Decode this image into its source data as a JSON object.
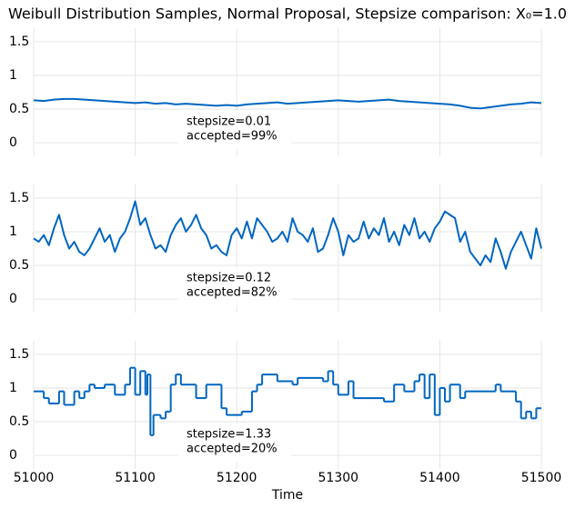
{
  "chart_data": [
    {
      "type": "line",
      "title": "Weibull Distribution Samples, Normal Proposal, Stepsize comparison: X₀=1.0",
      "color": "#0066c0",
      "xlim": [
        51000,
        51500
      ],
      "ylim": [
        -0.2,
        1.7
      ],
      "yticks": [
        0.0,
        0.5,
        1.0,
        1.5
      ],
      "xticks": [
        51000,
        51100,
        51200,
        51300,
        51400,
        51500
      ],
      "show_xticklabels": false,
      "grid": true,
      "annotation": [
        "stepsize=0.01",
        "accepted=99%"
      ],
      "x": [
        51000,
        51010,
        51020,
        51030,
        51040,
        51050,
        51060,
        51070,
        51080,
        51090,
        51100,
        51110,
        51120,
        51130,
        51140,
        51150,
        51160,
        51170,
        51180,
        51190,
        51200,
        51210,
        51220,
        51230,
        51240,
        51250,
        51260,
        51270,
        51280,
        51290,
        51300,
        51310,
        51320,
        51330,
        51340,
        51350,
        51360,
        51370,
        51380,
        51390,
        51400,
        51410,
        51420,
        51430,
        51440,
        51450,
        51460,
        51470,
        51480,
        51490,
        51500
      ],
      "values": [
        0.63,
        0.62,
        0.64,
        0.65,
        0.65,
        0.64,
        0.63,
        0.62,
        0.61,
        0.6,
        0.59,
        0.6,
        0.58,
        0.59,
        0.57,
        0.58,
        0.57,
        0.56,
        0.55,
        0.56,
        0.55,
        0.57,
        0.58,
        0.59,
        0.6,
        0.58,
        0.59,
        0.6,
        0.61,
        0.62,
        0.63,
        0.62,
        0.61,
        0.62,
        0.63,
        0.64,
        0.62,
        0.61,
        0.6,
        0.59,
        0.58,
        0.57,
        0.55,
        0.52,
        0.51,
        0.53,
        0.55,
        0.57,
        0.58,
        0.6,
        0.59
      ]
    },
    {
      "type": "line",
      "color": "#0066c0",
      "xlim": [
        51000,
        51500
      ],
      "ylim": [
        -0.2,
        1.7
      ],
      "yticks": [
        0.0,
        0.5,
        1.0,
        1.5
      ],
      "xticks": [
        51000,
        51100,
        51200,
        51300,
        51400,
        51500
      ],
      "show_xticklabels": false,
      "grid": true,
      "annotation": [
        "stepsize=0.12",
        "accepted=82%"
      ],
      "x": [
        51000,
        51005,
        51010,
        51015,
        51020,
        51025,
        51030,
        51035,
        51040,
        51045,
        51050,
        51055,
        51060,
        51065,
        51070,
        51075,
        51080,
        51085,
        51090,
        51095,
        51100,
        51105,
        51110,
        51115,
        51120,
        51125,
        51130,
        51135,
        51140,
        51145,
        51150,
        51155,
        51160,
        51165,
        51170,
        51175,
        51180,
        51185,
        51190,
        51195,
        51200,
        51205,
        51210,
        51215,
        51220,
        51225,
        51230,
        51235,
        51240,
        51245,
        51250,
        51255,
        51260,
        51265,
        51270,
        51275,
        51280,
        51285,
        51290,
        51295,
        51300,
        51305,
        51310,
        51315,
        51320,
        51325,
        51330,
        51335,
        51340,
        51345,
        51350,
        51355,
        51360,
        51365,
        51370,
        51375,
        51380,
        51385,
        51390,
        51395,
        51400,
        51405,
        51410,
        51415,
        51420,
        51425,
        51430,
        51435,
        51440,
        51445,
        51450,
        51455,
        51460,
        51465,
        51470,
        51475,
        51480,
        51485,
        51490,
        51495,
        51500
      ],
      "values": [
        0.9,
        0.85,
        0.95,
        0.8,
        1.05,
        1.25,
        0.95,
        0.75,
        0.85,
        0.7,
        0.65,
        0.75,
        0.9,
        1.05,
        0.85,
        0.95,
        0.7,
        0.9,
        1.0,
        1.2,
        1.45,
        1.1,
        1.2,
        0.95,
        0.75,
        0.8,
        0.7,
        0.95,
        1.1,
        1.2,
        1.0,
        1.1,
        1.25,
        1.05,
        0.95,
        0.75,
        0.8,
        0.7,
        0.65,
        0.95,
        1.05,
        0.9,
        1.15,
        0.9,
        1.2,
        1.1,
        1.0,
        0.85,
        0.9,
        1.0,
        0.85,
        1.2,
        1.0,
        0.95,
        0.85,
        1.05,
        0.7,
        0.75,
        0.95,
        1.2,
        1.0,
        0.65,
        0.95,
        0.85,
        0.9,
        1.15,
        0.9,
        1.05,
        0.95,
        1.2,
        0.85,
        1.0,
        0.8,
        1.1,
        0.95,
        1.2,
        0.9,
        1.0,
        0.85,
        1.05,
        1.15,
        1.3,
        1.25,
        1.2,
        0.85,
        1.0,
        0.7,
        0.6,
        0.5,
        0.65,
        0.55,
        0.9,
        0.7,
        0.45,
        0.7,
        0.85,
        1.0,
        0.8,
        0.6,
        1.05,
        0.75
      ]
    },
    {
      "type": "line",
      "drawstyle": "steps-post",
      "color": "#0066c0",
      "xlim": [
        51000,
        51500
      ],
      "ylim": [
        -0.2,
        1.7
      ],
      "yticks": [
        0.0,
        0.5,
        1.0,
        1.5
      ],
      "xticks": [
        51000,
        51100,
        51200,
        51300,
        51400,
        51500
      ],
      "show_xticklabels": true,
      "grid": true,
      "xlabel": "Time",
      "annotation": [
        "stepsize=1.33",
        "accepted=20%"
      ],
      "x": [
        51000,
        51010,
        51015,
        51025,
        51030,
        51040,
        51045,
        51050,
        51055,
        51060,
        51070,
        51080,
        51090,
        51095,
        51100,
        51105,
        51110,
        51112,
        51115,
        51118,
        51125,
        51130,
        51135,
        51140,
        51145,
        51155,
        51160,
        51170,
        51185,
        51190,
        51205,
        51215,
        51220,
        51225,
        51240,
        51255,
        51260,
        51285,
        51290,
        51295,
        51300,
        51310,
        51315,
        51345,
        51355,
        51365,
        51375,
        51380,
        51385,
        51390,
        51395,
        51400,
        51405,
        51410,
        51420,
        51425,
        51455,
        51460,
        51470,
        51475,
        51480,
        51485,
        51490,
        51495
      ],
      "values": [
        0.95,
        0.85,
        0.77,
        0.95,
        0.75,
        0.95,
        0.85,
        0.95,
        1.05,
        1.0,
        1.05,
        0.9,
        1.05,
        1.3,
        0.9,
        1.25,
        0.9,
        1.2,
        0.3,
        0.6,
        0.55,
        0.65,
        1.05,
        1.2,
        1.05,
        1.05,
        0.85,
        1.05,
        0.7,
        0.6,
        0.65,
        0.95,
        1.05,
        1.2,
        1.1,
        1.05,
        1.15,
        1.1,
        1.25,
        1.05,
        0.9,
        1.1,
        0.85,
        0.8,
        1.05,
        0.95,
        1.1,
        1.2,
        0.85,
        1.2,
        0.6,
        1.0,
        0.8,
        1.05,
        0.85,
        0.95,
        1.05,
        0.95,
        0.95,
        0.8,
        0.55,
        0.65,
        0.55,
        0.7
      ]
    }
  ]
}
